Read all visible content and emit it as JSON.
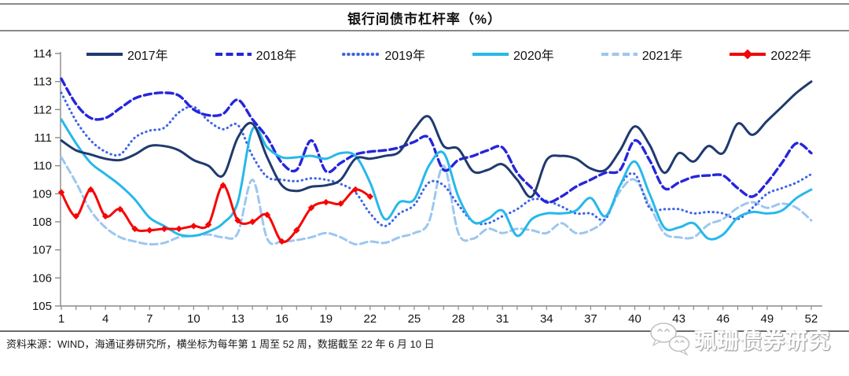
{
  "title": "银行间债市杠杆率（%）",
  "legend": [
    {
      "label": "2017年",
      "color": "#1F3A6E",
      "style": "solid"
    },
    {
      "label": "2018年",
      "color": "#2525DC",
      "style": "dash"
    },
    {
      "label": "2019年",
      "color": "#3C64E6",
      "style": "dot"
    },
    {
      "label": "2020年",
      "color": "#27B8EA",
      "style": "solid"
    },
    {
      "label": "2021年",
      "color": "#9CC7F0",
      "style": "dash"
    },
    {
      "label": "2022年",
      "color": "#F50505",
      "style": "solid-diamond"
    }
  ],
  "footer": {
    "source_text": "资料来源：WIND，海通证券研究所，横坐标为每年第 1 周至 52 周，数据截至 22 年 6 月 10 日"
  },
  "watermark": {
    "text": "珮珊债券研究",
    "icon": "wechat-chat-bubbles"
  },
  "chart_data": {
    "type": "line",
    "title": "银行间债市杠杆率（%）",
    "xlabel": "周（每年第 1 周至 52 周）",
    "ylabel": "",
    "ylim": [
      105,
      114
    ],
    "y_ticks": [
      105,
      106,
      107,
      108,
      109,
      110,
      111,
      112,
      113,
      114
    ],
    "x_range": [
      1,
      52
    ],
    "x_label_ticks": [
      1,
      4,
      7,
      10,
      13,
      16,
      19,
      22,
      25,
      28,
      31,
      34,
      37,
      40,
      43,
      46,
      49,
      52
    ],
    "grid": false,
    "legend_position": "top",
    "series": [
      {
        "name": "2021年",
        "color": "#9CC7F0",
        "dash": "dash",
        "marker": "none",
        "values": [
          110.3,
          109.4,
          108.4,
          107.8,
          107.45,
          107.3,
          107.2,
          107.25,
          107.45,
          107.5,
          107.55,
          107.45,
          107.6,
          109.5,
          107.4,
          107.3,
          107.35,
          107.45,
          107.6,
          107.45,
          107.2,
          107.3,
          107.25,
          107.45,
          107.6,
          108.0,
          110.0,
          107.6,
          107.4,
          107.75,
          107.6,
          107.75,
          107.7,
          107.6,
          107.95,
          107.6,
          107.7,
          108.1,
          109.1,
          109.5,
          108.6,
          107.6,
          107.45,
          107.45,
          107.9,
          108.1,
          108.5,
          108.7,
          108.5,
          108.65,
          108.5,
          108.05
        ]
      },
      {
        "name": "2019年",
        "color": "#3C64E6",
        "dash": "dot",
        "marker": "none",
        "values": [
          112.6,
          111.6,
          110.9,
          110.5,
          110.4,
          111.0,
          111.25,
          111.35,
          111.9,
          112.1,
          111.6,
          111.3,
          111.45,
          110.35,
          109.6,
          109.5,
          109.45,
          109.55,
          109.5,
          109.35,
          109.05,
          108.3,
          107.85,
          108.3,
          108.6,
          109.4,
          109.3,
          108.6,
          108.0,
          107.95,
          108.2,
          108.45,
          108.8,
          108.75,
          108.55,
          108.3,
          108.3,
          108.1,
          109.3,
          109.7,
          108.5,
          108.45,
          108.45,
          108.3,
          108.35,
          108.3,
          108.1,
          108.5,
          109.0,
          109.2,
          109.4,
          109.7
        ]
      },
      {
        "name": "2018年",
        "color": "#2525DC",
        "dash": "dash",
        "marker": "none",
        "values": [
          113.1,
          112.2,
          111.7,
          111.7,
          112.05,
          112.4,
          112.55,
          112.6,
          112.5,
          112.0,
          111.8,
          111.85,
          112.35,
          111.65,
          111.0,
          110.1,
          109.85,
          110.9,
          109.8,
          110.1,
          110.4,
          110.5,
          110.55,
          110.65,
          110.85,
          111.0,
          109.85,
          110.2,
          110.35,
          110.55,
          110.65,
          109.75,
          109.2,
          108.7,
          108.9,
          109.25,
          109.5,
          109.75,
          109.85,
          110.9,
          110.2,
          109.2,
          109.4,
          109.6,
          109.65,
          109.65,
          109.2,
          108.9,
          109.4,
          110.1,
          110.8,
          110.45
        ]
      },
      {
        "name": "2020年",
        "color": "#27B8EA",
        "dash": "solid",
        "marker": "none",
        "values": [
          111.65,
          110.8,
          110.1,
          109.7,
          109.3,
          108.8,
          108.15,
          107.85,
          107.55,
          107.5,
          107.65,
          107.95,
          108.7,
          111.3,
          110.65,
          110.3,
          110.3,
          110.35,
          110.25,
          110.45,
          110.35,
          109.4,
          108.1,
          108.7,
          108.8,
          110.0,
          110.45,
          108.9,
          108.0,
          108.1,
          108.4,
          107.5,
          108.1,
          108.3,
          108.3,
          108.4,
          108.85,
          108.2,
          109.3,
          110.15,
          109.0,
          107.8,
          107.8,
          107.95,
          107.4,
          107.55,
          108.15,
          108.35,
          108.3,
          108.4,
          108.85,
          109.15
        ]
      },
      {
        "name": "2017年",
        "color": "#1F3A6E",
        "dash": "solid",
        "marker": "none",
        "values": [
          110.9,
          110.55,
          110.4,
          110.25,
          110.2,
          110.4,
          110.7,
          110.7,
          110.55,
          110.2,
          110.0,
          109.65,
          111.0,
          111.5,
          110.3,
          109.3,
          109.1,
          109.25,
          109.3,
          109.5,
          110.25,
          110.25,
          110.35,
          110.5,
          111.3,
          111.75,
          110.7,
          110.6,
          109.8,
          109.85,
          110.05,
          109.5,
          108.9,
          110.2,
          110.35,
          110.25,
          109.9,
          109.85,
          110.55,
          111.4,
          110.75,
          109.75,
          110.45,
          110.15,
          110.7,
          110.45,
          111.5,
          111.1,
          111.6,
          112.1,
          112.6,
          113.0
        ]
      },
      {
        "name": "2022年",
        "color": "#F50505",
        "dash": "solid",
        "marker": "diamond",
        "values": [
          109.05,
          108.2,
          109.15,
          108.2,
          108.45,
          107.75,
          107.7,
          107.75,
          107.75,
          107.85,
          107.9,
          109.3,
          108.05,
          108.0,
          108.25,
          107.3,
          107.7,
          108.5,
          108.7,
          108.65,
          109.15,
          108.9
        ]
      }
    ]
  }
}
